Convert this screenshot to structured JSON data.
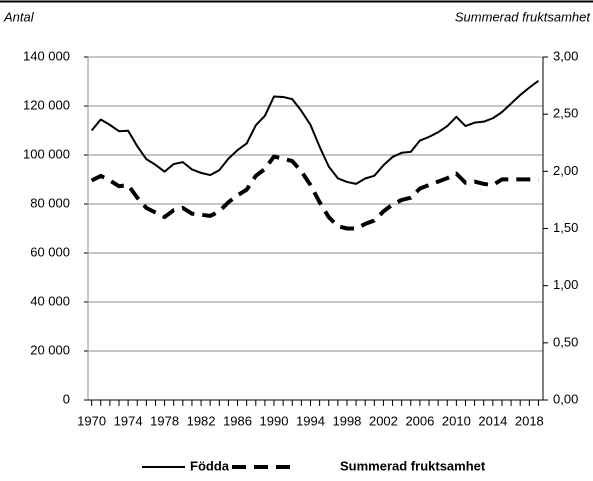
{
  "chart_data": {
    "type": "line",
    "y_axis_label": "Antal",
    "y2_axis_label": "Summerad fruktsamhet",
    "x": [
      1970,
      1971,
      1972,
      1973,
      1974,
      1975,
      1976,
      1977,
      1978,
      1979,
      1980,
      1981,
      1982,
      1983,
      1984,
      1985,
      1986,
      1987,
      1988,
      1989,
      1990,
      1991,
      1992,
      1993,
      1994,
      1995,
      1996,
      1997,
      1998,
      1999,
      2000,
      2001,
      2002,
      2003,
      2004,
      2005,
      2006,
      2007,
      2008,
      2009,
      2010,
      2011,
      2012,
      2013,
      2014,
      2015,
      2016,
      2017,
      2018,
      2019
    ],
    "xlim": [
      1969.6,
      2019.5
    ],
    "xticks": [
      1970,
      1974,
      1978,
      1982,
      1986,
      1990,
      1994,
      1998,
      2002,
      2006,
      2010,
      2014,
      2018
    ],
    "ylim": [
      0,
      140000
    ],
    "yticks": [
      {
        "value": 0,
        "label": "0"
      },
      {
        "value": 20000,
        "label": "20 000"
      },
      {
        "value": 40000,
        "label": "40 000"
      },
      {
        "value": 60000,
        "label": "60 000"
      },
      {
        "value": 80000,
        "label": "80 000"
      },
      {
        "value": 100000,
        "label": "100 000"
      },
      {
        "value": 120000,
        "label": "120 000"
      },
      {
        "value": 140000,
        "label": "140 000"
      }
    ],
    "y2lim": [
      0,
      3
    ],
    "y2ticks": [
      {
        "value": 0,
        "label": "0,00"
      },
      {
        "value": 0.5,
        "label": "0,50"
      },
      {
        "value": 1,
        "label": "1,00"
      },
      {
        "value": 1.5,
        "label": "1,50"
      },
      {
        "value": 2,
        "label": "2,00"
      },
      {
        "value": 2.5,
        "label": "2,50"
      },
      {
        "value": 3,
        "label": "3,00"
      }
    ],
    "grid": true,
    "legend": "bottom",
    "series": [
      {
        "name": "Födda",
        "color": "#000000",
        "dash": "solid",
        "values": [
          110000,
          114500,
          112300,
          109700,
          109900,
          103600,
          98300,
          96000,
          93200,
          96300,
          97100,
          94100,
          92700,
          91800,
          93800,
          98500,
          102000,
          104700,
          112100,
          116000,
          123900,
          123700,
          122800,
          118000,
          112300,
          103400,
          95300,
          90500,
          89000,
          88200,
          90400,
          91500,
          95800,
          99200,
          100900,
          101300,
          105900,
          107400,
          109300,
          111800,
          115600,
          111800,
          113200,
          113600,
          115000,
          117500,
          121000,
          124500,
          127500,
          130300
        ]
      },
      {
        "name": "Summerad fruktsamhet",
        "color": "#000000",
        "dash": "dashed",
        "axis": "y2",
        "values": [
          1.92,
          1.96,
          1.92,
          1.87,
          1.88,
          1.77,
          1.68,
          1.64,
          1.6,
          1.66,
          1.68,
          1.63,
          1.62,
          1.61,
          1.65,
          1.73,
          1.79,
          1.84,
          1.96,
          2.02,
          2.13,
          2.11,
          2.09,
          2.0,
          1.88,
          1.73,
          1.6,
          1.52,
          1.5,
          1.5,
          1.54,
          1.57,
          1.65,
          1.71,
          1.75,
          1.77,
          1.85,
          1.88,
          1.91,
          1.94,
          1.98,
          1.9,
          1.91,
          1.89,
          1.88,
          1.93,
          1.93,
          1.93,
          1.93,
          1.93
        ]
      }
    ]
  }
}
